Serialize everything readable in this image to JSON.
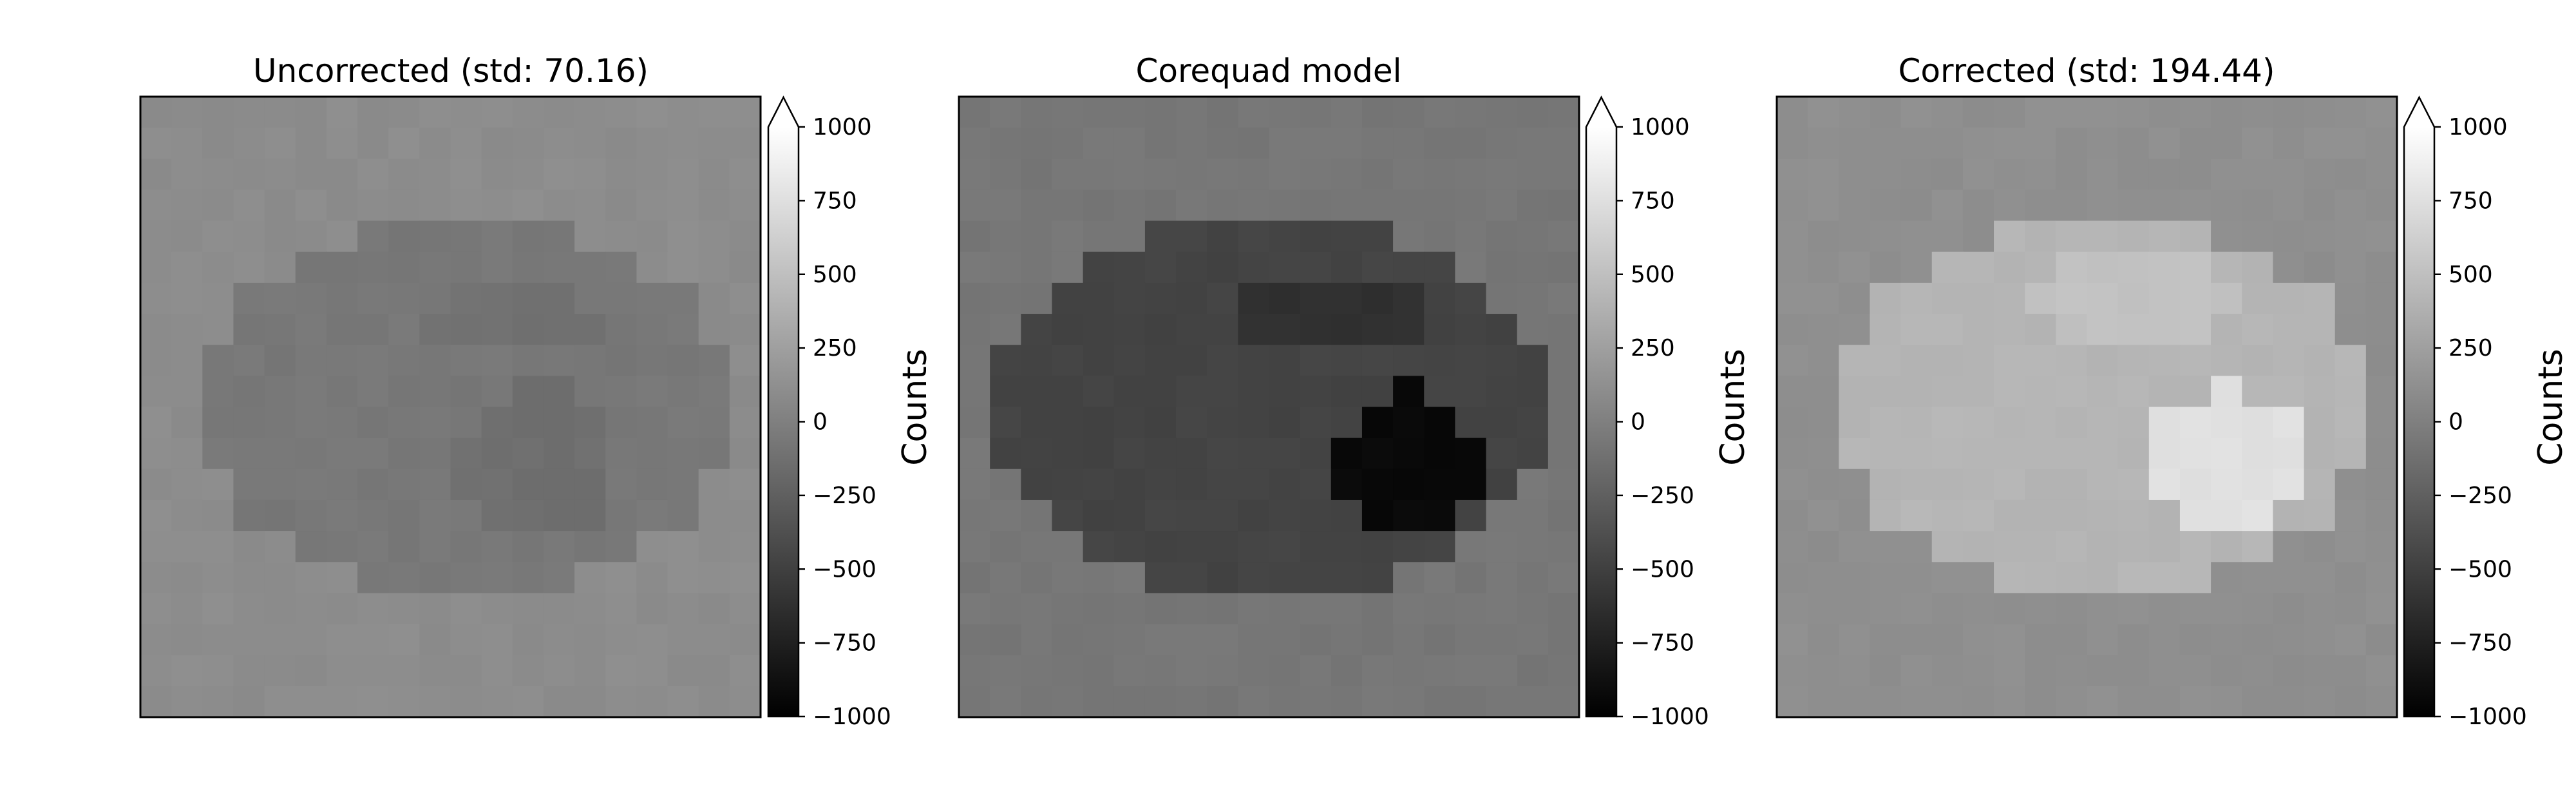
{
  "chart_data": [
    {
      "type": "heatmap",
      "title": "Uncorrected (std: 70.16)",
      "colormap": "gray",
      "value_range": [
        -1000,
        1000
      ],
      "colorbar": {
        "label": "Counts",
        "ticks": [
          1000,
          750,
          500,
          250,
          0,
          -250,
          -500,
          -750,
          -1000
        ],
        "tick_labels": [
          "1000",
          "750",
          "500",
          "250",
          "0",
          "−250",
          "−500",
          "−750",
          "−1000"
        ],
        "extend": "max"
      },
      "grid_rows": 20,
      "grid_cols": 20,
      "background": 100,
      "features": [
        {
          "shape": "ellipse",
          "center": [
            10.0,
            10.5
          ],
          "radius": [
            6.0,
            8.8
          ],
          "value": -60
        },
        {
          "shape": "ellipse",
          "center": [
            7.2,
            12.0
          ],
          "radius": [
            1.2,
            3.0
          ],
          "value": -110
        },
        {
          "shape": "ellipse",
          "center": [
            11.8,
            12.8
          ],
          "radius": [
            2.4,
            2.6
          ],
          "value": -130
        }
      ]
    },
    {
      "type": "heatmap",
      "title": "Corequad model",
      "colormap": "gray",
      "value_range": [
        -1000,
        1000
      ],
      "colorbar": {
        "label": "Counts",
        "ticks": [
          1000,
          750,
          500,
          250,
          0,
          -250,
          -500,
          -750,
          -1000
        ],
        "tick_labels": [
          "1000",
          "750",
          "500",
          "250",
          "0",
          "−250",
          "−500",
          "−750",
          "−1000"
        ],
        "extend": "max"
      },
      "grid_rows": 20,
      "grid_cols": 20,
      "background": -70,
      "features": [
        {
          "shape": "ellipse",
          "center": [
            10.0,
            10.0
          ],
          "radius": [
            6.0,
            9.0
          ],
          "value": -470
        },
        {
          "shape": "ellipse",
          "center": [
            7.2,
            12.0
          ],
          "radius": [
            1.3,
            3.0
          ],
          "value": -620
        },
        {
          "shape": "ellipse",
          "center": [
            11.8,
            14.5
          ],
          "radius": [
            2.4,
            2.3
          ],
          "value": -930
        }
      ]
    },
    {
      "type": "heatmap",
      "title": "Corrected (std: 194.44)",
      "colormap": "gray",
      "value_range": [
        -1000,
        1000
      ],
      "colorbar": {
        "label": "Counts",
        "ticks": [
          1000,
          750,
          500,
          250,
          0,
          -250,
          -500,
          -750,
          -1000
        ],
        "tick_labels": [
          "1000",
          "750",
          "500",
          "250",
          "0",
          "−250",
          "−500",
          "−750",
          "−1000"
        ],
        "extend": "max"
      },
      "grid_rows": 20,
      "grid_cols": 20,
      "background": 120,
      "features": [
        {
          "shape": "ellipse",
          "center": [
            10.0,
            10.5
          ],
          "radius": [
            6.0,
            8.8
          ],
          "value": 420
        },
        {
          "shape": "ellipse",
          "center": [
            6.5,
            11.5
          ],
          "radius": [
            1.5,
            3.5
          ],
          "value": 520
        },
        {
          "shape": "ellipse",
          "center": [
            11.8,
            14.5
          ],
          "radius": [
            2.4,
            2.4
          ],
          "value": 760
        }
      ]
    }
  ]
}
